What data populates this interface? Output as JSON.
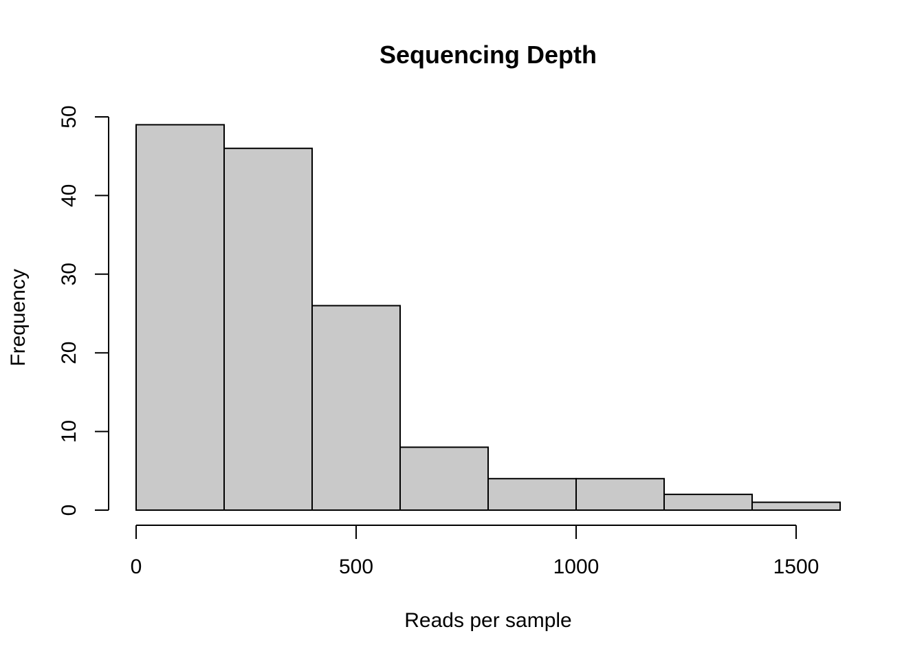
{
  "chart_data": {
    "type": "bar",
    "title": "Sequencing Depth",
    "xlabel": "Reads per sample",
    "ylabel": "Frequency",
    "bins": [
      {
        "start": 0,
        "end": 200,
        "count": 49
      },
      {
        "start": 200,
        "end": 400,
        "count": 46
      },
      {
        "start": 400,
        "end": 600,
        "count": 26
      },
      {
        "start": 600,
        "end": 800,
        "count": 8
      },
      {
        "start": 800,
        "end": 1000,
        "count": 4
      },
      {
        "start": 1000,
        "end": 1200,
        "count": 4
      },
      {
        "start": 1200,
        "end": 1400,
        "count": 2
      },
      {
        "start": 1400,
        "end": 1600,
        "count": 1
      }
    ],
    "x_ticks": [
      0,
      500,
      1000,
      1500
    ],
    "y_ticks": [
      0,
      10,
      20,
      30,
      40,
      50
    ],
    "xlim": [
      0,
      1600
    ],
    "ylim": [
      0,
      50
    ],
    "bar_fill": "#c9c9c9",
    "bar_stroke": "#000000",
    "grid": false
  }
}
